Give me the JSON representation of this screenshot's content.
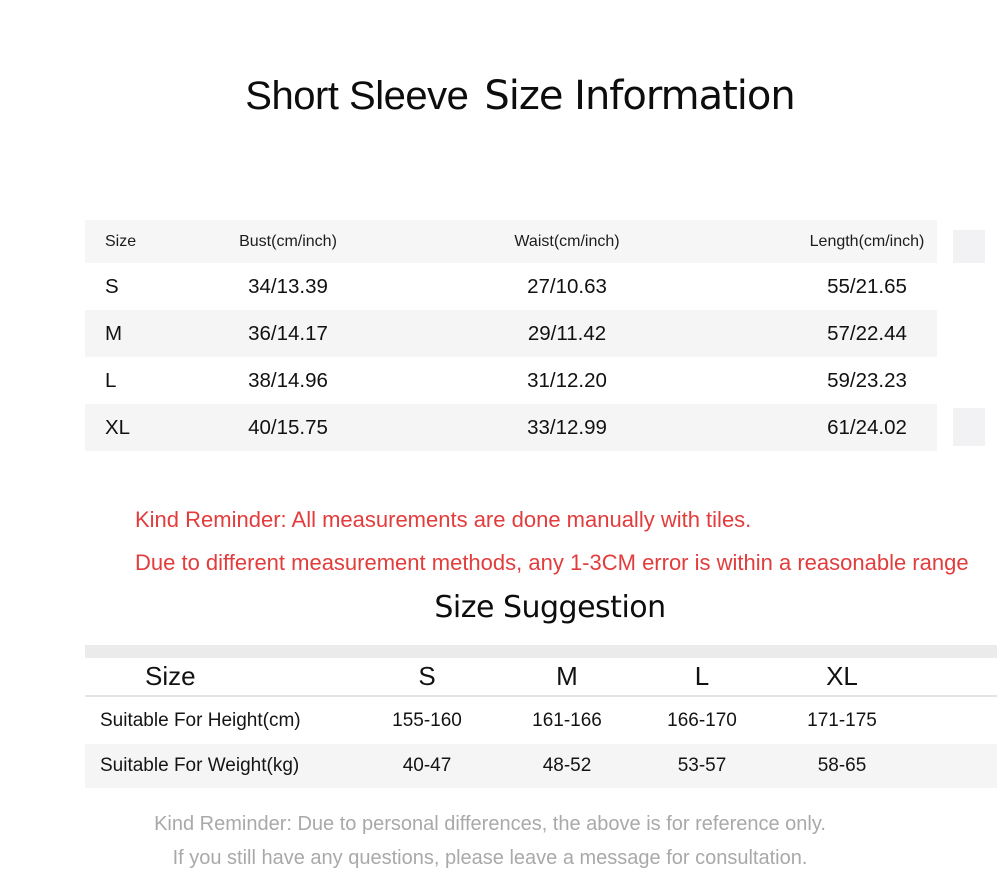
{
  "title": {
    "part1": "Short Sleeve",
    "part2": "Size Information"
  },
  "size_table": {
    "headers": [
      "Size",
      "Bust(cm/inch)",
      "Waist(cm/inch)",
      "Length(cm/inch)"
    ],
    "rows": [
      {
        "size": "S",
        "bust": "34/13.39",
        "waist": "27/10.63",
        "length": "55/21.65"
      },
      {
        "size": "M",
        "bust": "36/14.17",
        "waist": "29/11.42",
        "length": "57/22.44"
      },
      {
        "size": "L",
        "bust": "38/14.96",
        "waist": "31/12.20",
        "length": "59/23.23"
      },
      {
        "size": "XL",
        "bust": "40/15.75",
        "waist": "33/12.99",
        "length": "61/24.02"
      }
    ]
  },
  "reminder": {
    "line1": "Kind Reminder: All measurements are done manually with tiles.",
    "line2": "Due to different measurement methods, any 1-3CM error is within a reasonable range",
    "color": "#e23c3c"
  },
  "suggestion": {
    "heading": "Size Suggestion",
    "headers": [
      "Size",
      "S",
      "M",
      "L",
      "XL"
    ],
    "rows": [
      {
        "label": "Suitable For Height(cm)",
        "values": [
          "155-160",
          "161-166",
          "166-170",
          "171-175"
        ]
      },
      {
        "label": "Suitable For Weight(kg)",
        "values": [
          "40-47",
          "48-52",
          "53-57",
          "58-65"
        ]
      }
    ]
  },
  "footer": {
    "line1": "Kind Reminder: Due to personal differences, the above is for reference only.",
    "line2": "If you still have any questions, please leave a message for consultation.",
    "color": "#a9a9a9"
  },
  "colors": {
    "row_stripe": "#f5f5f6",
    "header_stripe": "#f6f6f7",
    "accent_red": "#e23c3c",
    "muted_gray": "#a9a9a9"
  }
}
